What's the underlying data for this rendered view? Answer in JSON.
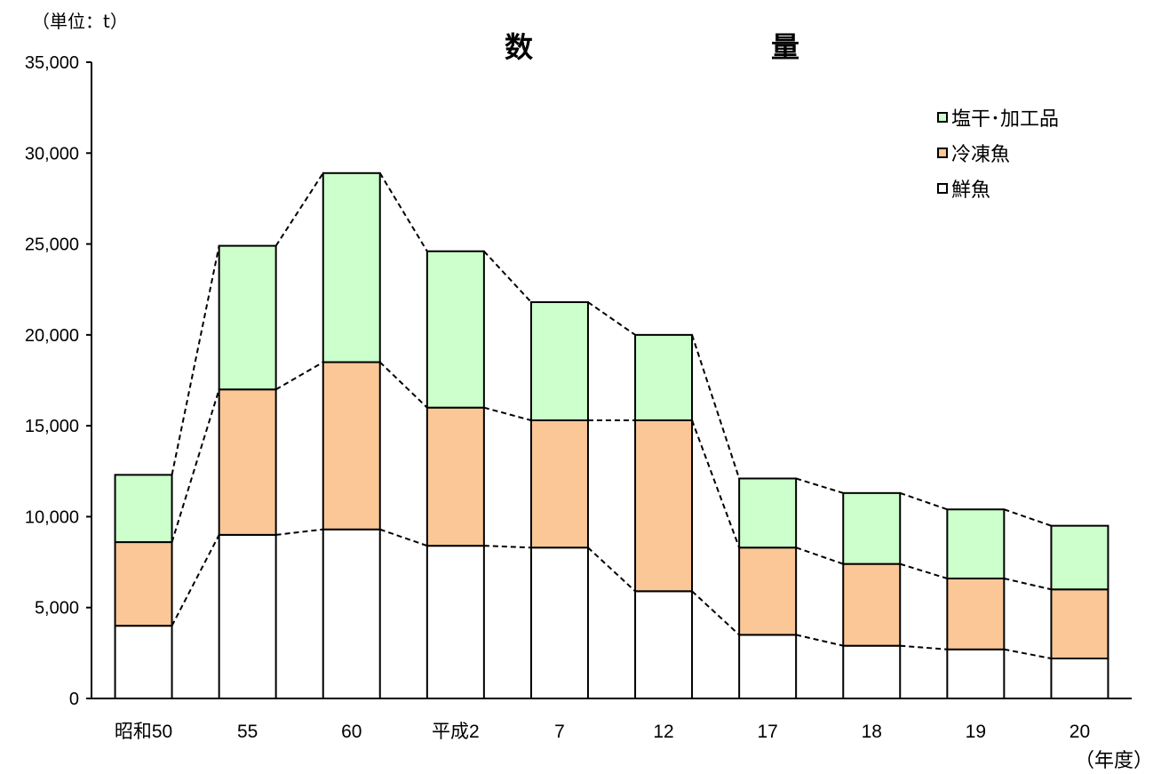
{
  "chart_data": {
    "type": "bar",
    "stacked": true,
    "title": "数　量",
    "unit_label": "（単位：t）",
    "xlabel": "（年度）",
    "ylabel": "",
    "ylim": [
      0,
      35000
    ],
    "yticks": [
      0,
      5000,
      10000,
      15000,
      20000,
      25000,
      30000,
      35000
    ],
    "ytick_labels": [
      "0",
      "5,000",
      "10,000",
      "15,000",
      "20,000",
      "25,000",
      "30,000",
      "35,000"
    ],
    "categories": [
      "昭和50",
      "55",
      "60",
      "平成2",
      "7",
      "12",
      "17",
      "18",
      "19",
      "20"
    ],
    "series": [
      {
        "name": "鮮魚",
        "color": "#ffffff",
        "values": [
          4000,
          9000,
          9300,
          8400,
          8300,
          5900,
          3500,
          2900,
          2700,
          2200
        ]
      },
      {
        "name": "冷凍魚",
        "color": "#fbc797",
        "values": [
          4600,
          8000,
          9200,
          7600,
          7000,
          9400,
          4800,
          4500,
          3900,
          3800
        ]
      },
      {
        "name": "塩干･加工品",
        "color": "#ccffcc",
        "values": [
          3700,
          7900,
          10400,
          8600,
          6500,
          4700,
          3800,
          3900,
          3800,
          3500
        ]
      }
    ],
    "grid": false,
    "legend_position": "top-right",
    "connector_lines": "dashed"
  }
}
